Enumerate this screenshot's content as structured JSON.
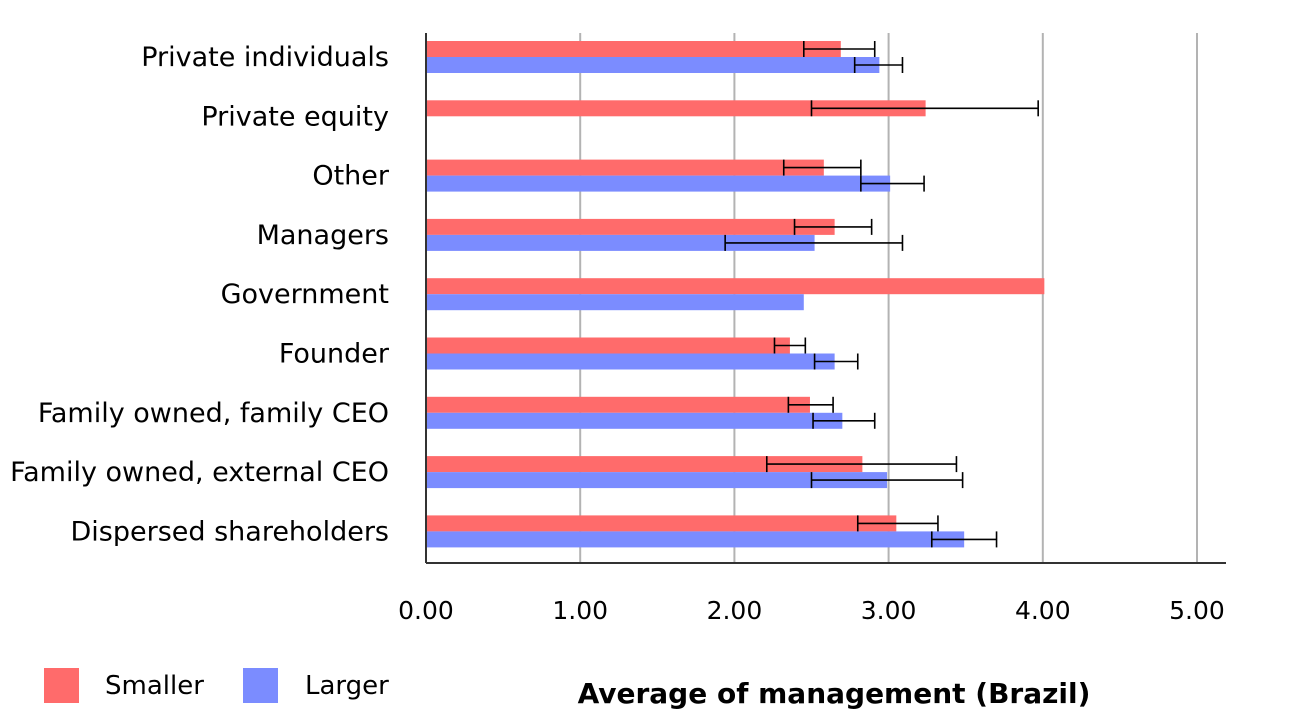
{
  "chart_data": {
    "type": "bar",
    "orientation": "horizontal",
    "xlabel": "Average of management (Brazil)",
    "xlim": [
      0,
      5.2
    ],
    "xticks": [
      "0.00",
      "1.00",
      "2.00",
      "3.00",
      "4.00",
      "5.00"
    ],
    "xtick_values": [
      0,
      1,
      2,
      3,
      4,
      5
    ],
    "grid": "vertical",
    "legend": "bottom-left",
    "categories": [
      "Private individuals",
      "Private equity",
      "Other",
      "Managers",
      "Government",
      "Founder",
      "Family owned, family CEO",
      "Family owned, external CEO",
      "Dispersed shareholders"
    ],
    "series": [
      {
        "name": "Smaller",
        "color": "#ff6b6b",
        "values": [
          2.69,
          3.24,
          2.58,
          2.65,
          4.01,
          2.36,
          2.49,
          2.83,
          3.05
        ],
        "error_low": [
          2.45,
          2.5,
          2.32,
          2.39,
          null,
          2.26,
          2.35,
          2.21,
          2.8
        ],
        "error_high": [
          2.91,
          3.97,
          2.82,
          2.89,
          null,
          2.46,
          2.64,
          3.44,
          3.32
        ]
      },
      {
        "name": "Larger",
        "color": "#7b8cff",
        "values": [
          2.94,
          null,
          3.01,
          2.52,
          2.45,
          2.65,
          2.7,
          2.99,
          3.49
        ],
        "error_low": [
          2.78,
          null,
          2.82,
          1.94,
          null,
          2.52,
          2.51,
          2.5,
          3.28
        ],
        "error_high": [
          3.09,
          null,
          3.23,
          3.09,
          null,
          2.8,
          2.91,
          3.48,
          3.7
        ]
      }
    ]
  }
}
